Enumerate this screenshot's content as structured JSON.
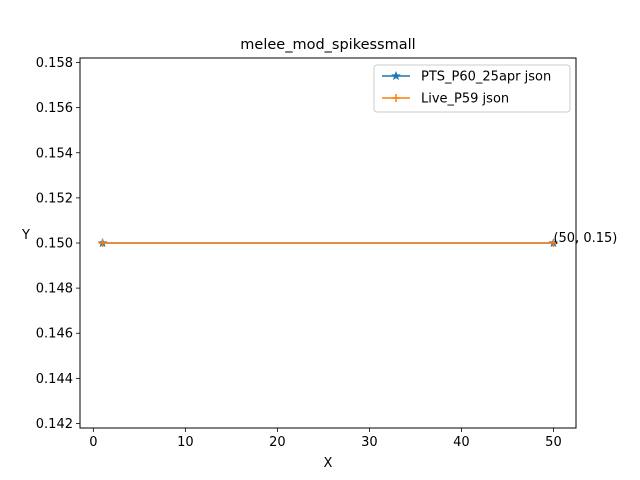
{
  "chart_data": {
    "type": "line",
    "title": "melee_mod_spikessmall",
    "xlabel": "X",
    "ylabel": "Y",
    "xlim": [
      -1.45,
      52.45
    ],
    "ylim": [
      0.1418,
      0.1582
    ],
    "xticks": [
      0,
      10,
      20,
      30,
      40,
      50
    ],
    "xtick_labels": [
      "0",
      "10",
      "20",
      "30",
      "40",
      "50"
    ],
    "yticks": [
      0.142,
      0.144,
      0.146,
      0.148,
      0.15,
      0.152,
      0.154,
      0.156,
      0.158
    ],
    "ytick_labels": [
      "0.142",
      "0.144",
      "0.146",
      "0.148",
      "0.150",
      "0.152",
      "0.154",
      "0.156",
      "0.158"
    ],
    "grid": false,
    "legend_position": "top-right",
    "series": [
      {
        "name": "PTS_P60_25apr json",
        "color": "#1f77b4",
        "marker": "star",
        "x": [
          1,
          50
        ],
        "y": [
          0.15,
          0.15
        ]
      },
      {
        "name": "Live_P59 json",
        "color": "#ff7f0e",
        "marker": "plus",
        "x": [
          1,
          50
        ],
        "y": [
          0.15,
          0.15
        ]
      }
    ],
    "annotations": [
      {
        "text": "(50, 0.15)",
        "x": 50,
        "y": 0.15
      }
    ]
  }
}
